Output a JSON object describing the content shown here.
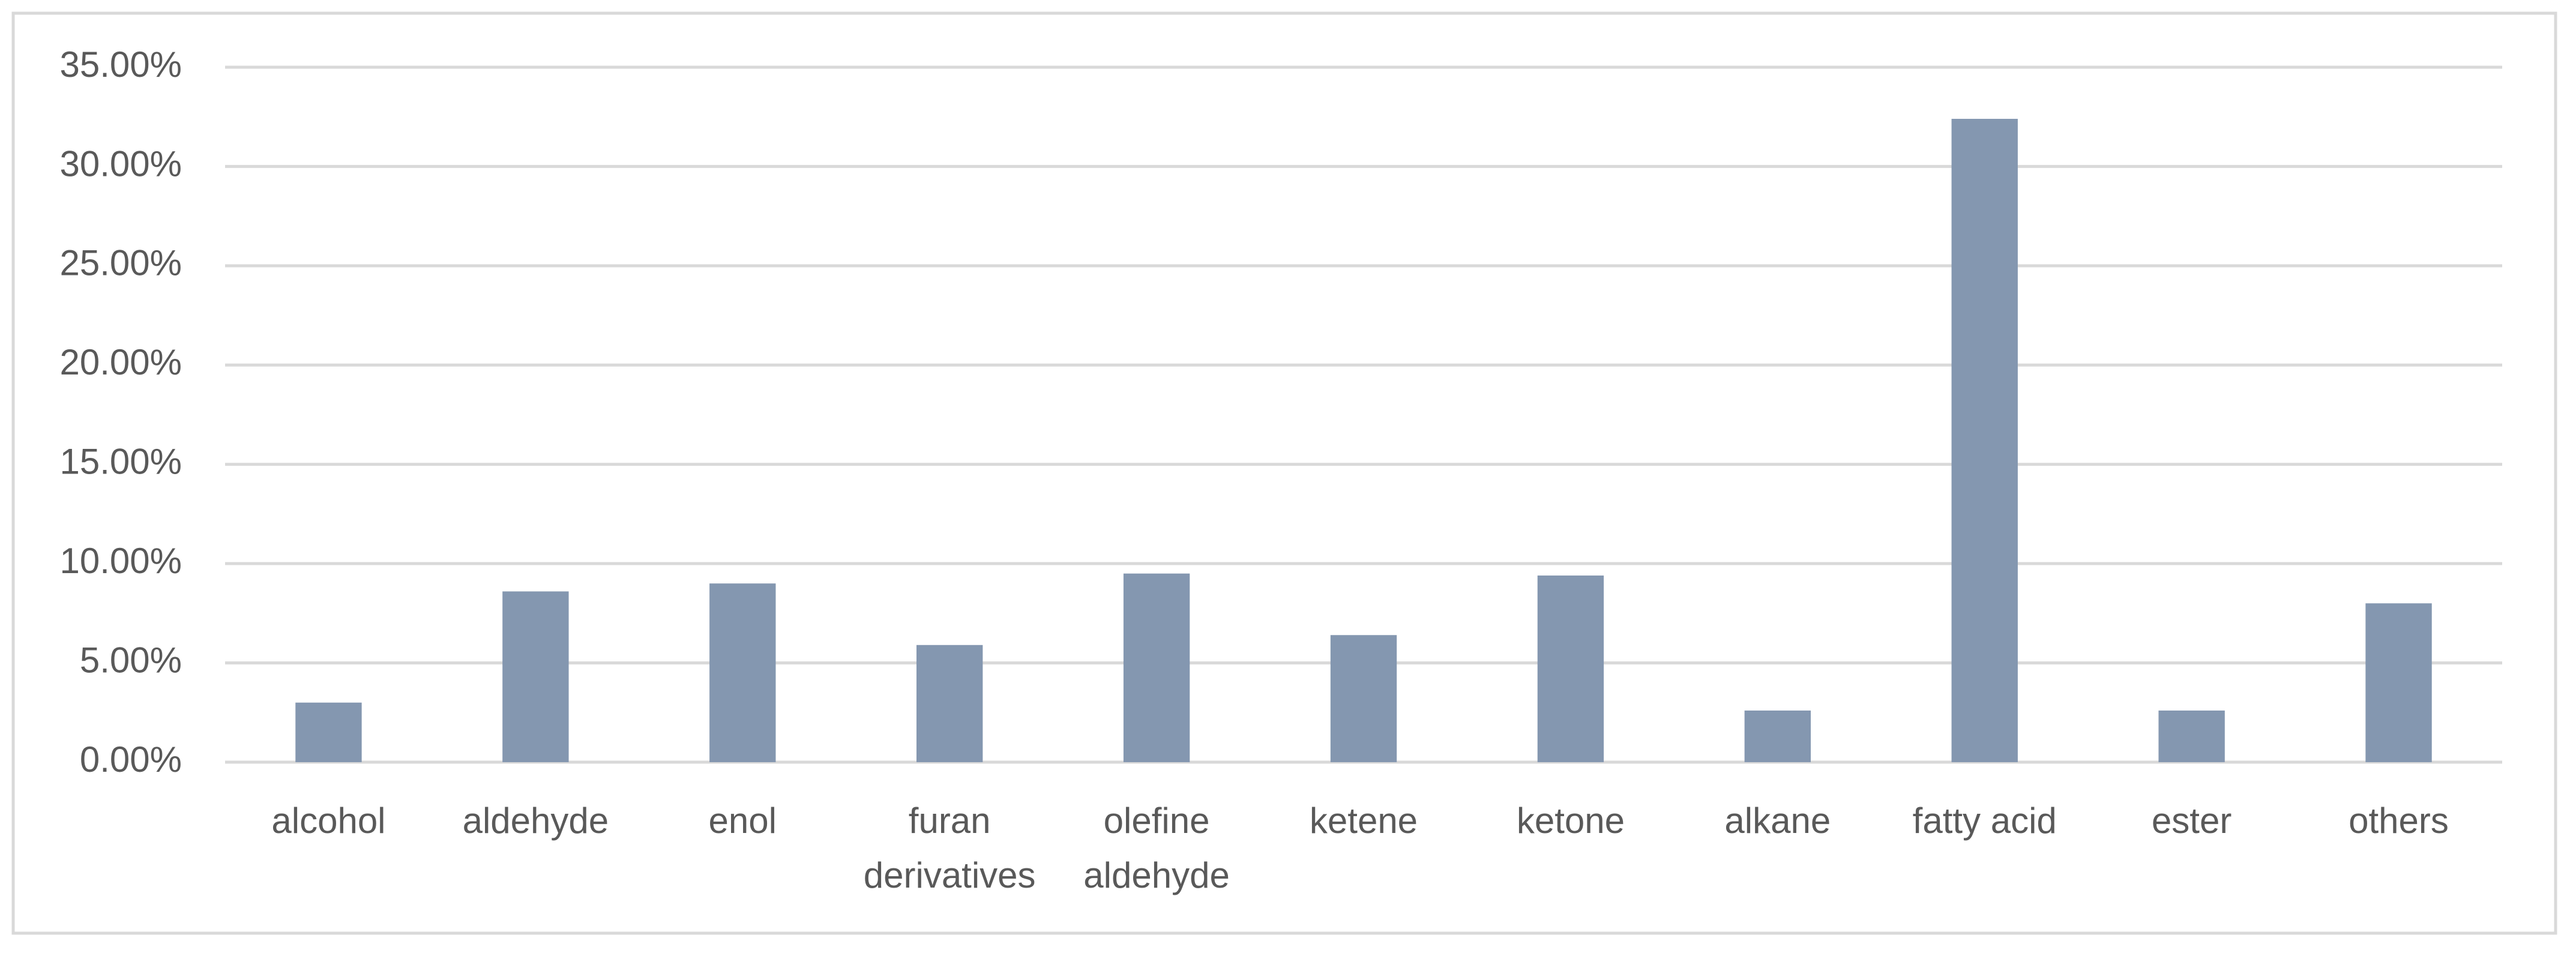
{
  "chart_data": {
    "type": "bar",
    "categories": [
      "alcohol",
      "aldehyde",
      "enol",
      "furan derivatives",
      "olefine aldehyde",
      "ketene",
      "ketone",
      "alkane",
      "fatty acid",
      "ester",
      "others"
    ],
    "values": [
      3.0,
      8.6,
      9.0,
      5.9,
      9.5,
      6.4,
      9.4,
      2.6,
      32.4,
      2.6,
      8.0
    ],
    "color": "#8497b0",
    "ylim": [
      0,
      35
    ],
    "yticks": [
      {
        "value": 0,
        "label": "0.00%"
      },
      {
        "value": 5,
        "label": "5.00%"
      },
      {
        "value": 10,
        "label": "10.00%"
      },
      {
        "value": 15,
        "label": "15.00%"
      },
      {
        "value": 20,
        "label": "20.00%"
      },
      {
        "value": 25,
        "label": "25.00%"
      },
      {
        "value": 30,
        "label": "30.00%"
      },
      {
        "value": 35,
        "label": "35.00%"
      }
    ],
    "grid": true
  }
}
